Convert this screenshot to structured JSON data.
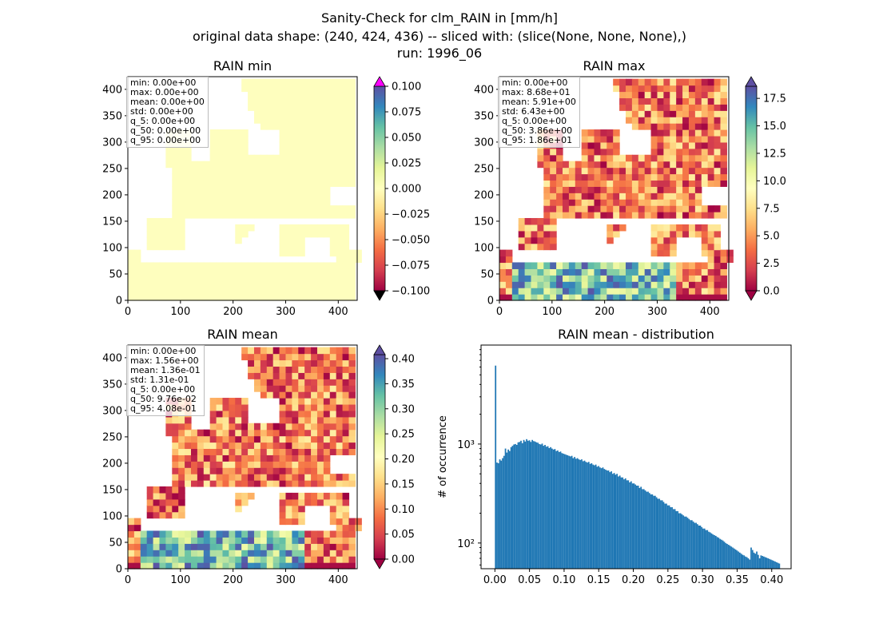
{
  "figure": {
    "title_lines": [
      "Sanity-Check for clm_RAIN in [mm/h]",
      "original data shape: (240, 424, 436) -- sliced with: (slice(None, None, None),)",
      "run: 1996_06"
    ]
  },
  "chart_data": [
    {
      "type": "heatmap",
      "title": "RAIN min",
      "x_ticks": [
        "0",
        "100",
        "200",
        "300",
        "400"
      ],
      "y_ticks": [
        "0",
        "50",
        "100",
        "150",
        "200",
        "250",
        "300",
        "350",
        "400"
      ],
      "xlim": [
        0,
        436
      ],
      "ylim": [
        0,
        424
      ],
      "colorbar": {
        "ticks": [
          "0.100",
          "0.075",
          "0.050",
          "0.025",
          "0.000",
          "−0.025",
          "−0.050",
          "−0.075",
          "−0.100"
        ],
        "range": [
          -0.1,
          0.1
        ],
        "extend": "both",
        "cmap": "Spectral"
      },
      "stats": [
        "min: 0.00e+00",
        "max: 0.00e+00",
        "mean: 0.00e+00",
        "std: 0.00e+00",
        "q_5: 0.00e+00",
        "q_50: 0.00e+00",
        "q_95: 0.00e+00"
      ]
    },
    {
      "type": "heatmap",
      "title": "RAIN max",
      "x_ticks": [
        "0",
        "100",
        "200",
        "300",
        "400"
      ],
      "y_ticks": [
        "0",
        "50",
        "100",
        "150",
        "200",
        "250",
        "300",
        "350",
        "400"
      ],
      "xlim": [
        0,
        436
      ],
      "ylim": [
        0,
        424
      ],
      "colorbar": {
        "ticks": [
          "17.5",
          "15.0",
          "12.5",
          "10.0",
          "7.5",
          "5.0",
          "2.5",
          "0.0"
        ],
        "range": [
          0,
          18.6
        ],
        "extend": "both",
        "cmap": "Spectral"
      },
      "stats": [
        "min: 0.00e+00",
        "max: 8.68e+01",
        "mean: 5.91e+00",
        "std: 6.43e+00",
        "q_5: 0.00e+00",
        "q_50: 3.86e+00",
        "q_95: 1.86e+01"
      ]
    },
    {
      "type": "heatmap",
      "title": "RAIN mean",
      "x_ticks": [
        "0",
        "100",
        "200",
        "300",
        "400"
      ],
      "y_ticks": [
        "0",
        "50",
        "100",
        "150",
        "200",
        "250",
        "300",
        "350",
        "400"
      ],
      "xlim": [
        0,
        436
      ],
      "ylim": [
        0,
        424
      ],
      "colorbar": {
        "ticks": [
          "0.40",
          "0.35",
          "0.30",
          "0.25",
          "0.20",
          "0.15",
          "0.10",
          "0.05",
          "0.00"
        ],
        "range": [
          0,
          0.408
        ],
        "extend": "both",
        "cmap": "Spectral"
      },
      "stats": [
        "min: 0.00e+00",
        "max: 1.56e+00",
        "mean: 1.36e-01",
        "std: 1.31e-01",
        "q_5: 0.00e+00",
        "q_50: 9.76e-02",
        "q_95: 4.08e-01"
      ]
    },
    {
      "type": "bar",
      "title": "RAIN mean - distribution",
      "ylabel": "# of occurrence",
      "y_scale": "log",
      "xlim": [
        -0.02,
        0.428
      ],
      "ylim": [
        55,
        10000
      ],
      "x_ticks": [
        "0.00",
        "0.05",
        "0.10",
        "0.15",
        "0.20",
        "0.25",
        "0.30",
        "0.35",
        "0.40"
      ],
      "y_ticks": [
        "10²",
        "10³"
      ],
      "bar_color": "#1f77b4",
      "bin_start": 0.0,
      "bin_width": 0.00204,
      "counts": [
        6200,
        650,
        640,
        700,
        680,
        720,
        760,
        900,
        820,
        880,
        850,
        930,
        960,
        990,
        1000,
        980,
        1040,
        1050,
        1080,
        1020,
        1100,
        1060,
        1120,
        1080,
        1090,
        1050,
        1100,
        1070,
        1060,
        1040,
        1030,
        1000,
        990,
        1010,
        960,
        980,
        940,
        950,
        910,
        930,
        900,
        880,
        890,
        850,
        860,
        830,
        840,
        810,
        800,
        790,
        780,
        770,
        760,
        750,
        760,
        720,
        740,
        710,
        720,
        700,
        690,
        700,
        670,
        680,
        660,
        650,
        660,
        630,
        640,
        620,
        610,
        620,
        590,
        600,
        580,
        570,
        580,
        560,
        550,
        540,
        540,
        520,
        530,
        500,
        510,
        490,
        500,
        470,
        480,
        460,
        460,
        440,
        450,
        430,
        430,
        410,
        420,
        400,
        400,
        390,
        380,
        380,
        360,
        370,
        350,
        350,
        340,
        330,
        330,
        320,
        310,
        310,
        300,
        300,
        290,
        280,
        280,
        270,
        270,
        260,
        250,
        250,
        240,
        240,
        230,
        230,
        220,
        220,
        210,
        210,
        200,
        200,
        195,
        190,
        185,
        185,
        180,
        175,
        170,
        170,
        165,
        160,
        160,
        155,
        150,
        150,
        145,
        140,
        140,
        135,
        135,
        130,
        128,
        125,
        122,
        120,
        118,
        115,
        113,
        110,
        108,
        106,
        103,
        100,
        98,
        96,
        94,
        92,
        90,
        88,
        86,
        84,
        82,
        80,
        78,
        76,
        75,
        73,
        72,
        70,
        68,
        90,
        85,
        80,
        78,
        82,
        76,
        70,
        75,
        74,
        73,
        72,
        71,
        70,
        69,
        68,
        67,
        66,
        65,
        64,
        63,
        62
      ]
    }
  ]
}
